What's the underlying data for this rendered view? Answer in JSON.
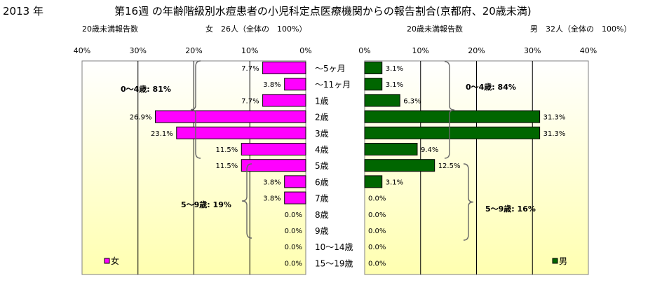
{
  "year_label": "2013 年",
  "title": "第16週 の年齢階級別水痘患者の小児科定点医療機関からの報告割合(京都府、20歳未満)",
  "left_subtitle": "20歳未満報告数",
  "left_total": "女　26人（全体の　100%）",
  "right_subtitle": "20歳未満報告数",
  "right_total": "男　32人（全体の　100%）",
  "colors": {
    "female": "#ff00ff",
    "male": "#006600",
    "panel_top": "#ffffff",
    "panel_bottom": "#ffffb0"
  },
  "chart_data": [
    {
      "type": "bar",
      "orientation": "horizontal",
      "direction": "right-to-left",
      "series": [
        {
          "name": "女",
          "values": [
            7.7,
            3.8,
            7.7,
            26.9,
            23.1,
            11.5,
            11.5,
            3.8,
            3.8,
            0.0,
            0.0,
            0.0,
            0.0
          ]
        }
      ],
      "value_labels": [
        "7.7%",
        "3.8%",
        "7.7%",
        "26.9%",
        "23.1%",
        "11.5%",
        "11.5%",
        "3.8%",
        "3.8%",
        "0.0%",
        "0.0%",
        "0.0%",
        "0.0%"
      ],
      "xlim": [
        0,
        40
      ],
      "ticks": [
        "40%",
        "30%",
        "20%",
        "10%",
        "0%"
      ],
      "legend": {
        "label": "女",
        "position": "bottom-left"
      },
      "annotations": [
        "0～4歳: 81%",
        "5～9歳: 19%"
      ]
    },
    {
      "type": "bar",
      "orientation": "horizontal",
      "direction": "left-to-right",
      "series": [
        {
          "name": "男",
          "values": [
            3.1,
            3.1,
            6.3,
            31.3,
            31.3,
            9.4,
            12.5,
            3.1,
            0.0,
            0.0,
            0.0,
            0.0,
            0.0
          ]
        }
      ],
      "value_labels": [
        "3.1%",
        "3.1%",
        "6.3%",
        "31.3%",
        "31.3%",
        "9.4%",
        "12.5%",
        "3.1%",
        "0.0%",
        "0.0%",
        "0.0%",
        "0.0%",
        "0.0%"
      ],
      "xlim": [
        0,
        40
      ],
      "ticks": [
        "0%",
        "10%",
        "20%",
        "30%",
        "40%"
      ],
      "legend": {
        "label": "男",
        "position": "bottom-right"
      },
      "annotations": [
        "0～4歳: 84%",
        "5～9歳: 16%"
      ]
    }
  ],
  "categories": [
    "～5ヶ月",
    "～11ヶ月",
    "1歳",
    "2歳",
    "3歳",
    "4歳",
    "5歳",
    "6歳",
    "7歳",
    "8歳",
    "9歳",
    "10～14歳",
    "15～19歳"
  ]
}
